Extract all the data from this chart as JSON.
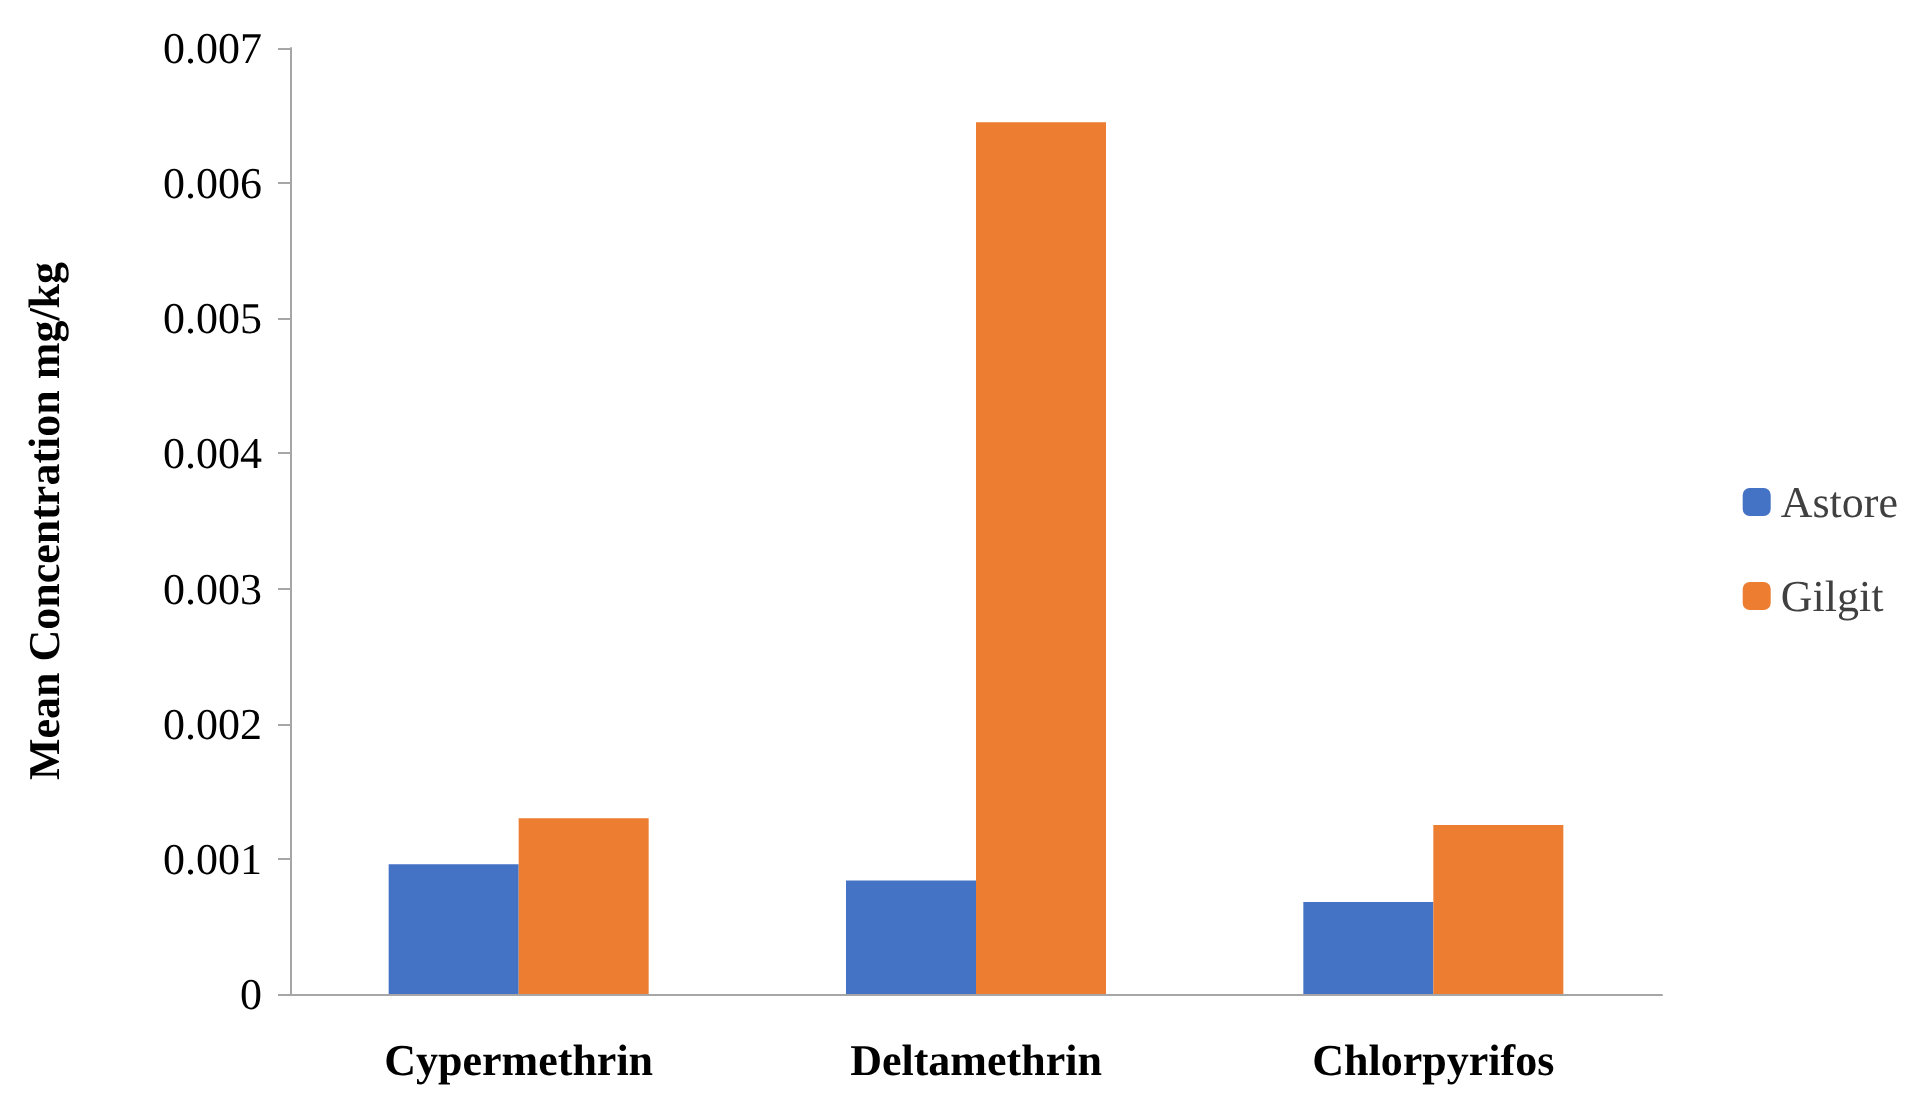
{
  "chart_data": {
    "type": "bar",
    "ylabel": "Mean Concentration mg/kg",
    "categories": [
      "Cypermethrin",
      "Deltamethrin",
      "Chlorpyrifos"
    ],
    "series": [
      {
        "name": "Astore",
        "color": "#4472c4",
        "values": [
          0.00096,
          0.00084,
          0.00068
        ]
      },
      {
        "name": "Gilgit",
        "color": "#ed7d31",
        "values": [
          0.0013,
          0.00645,
          0.00125
        ]
      }
    ],
    "ylim": [
      0,
      0.007
    ],
    "yticks": [
      0,
      0.001,
      0.002,
      0.003,
      0.004,
      0.005,
      0.006,
      0.007
    ],
    "grid": false,
    "legend": "right"
  }
}
